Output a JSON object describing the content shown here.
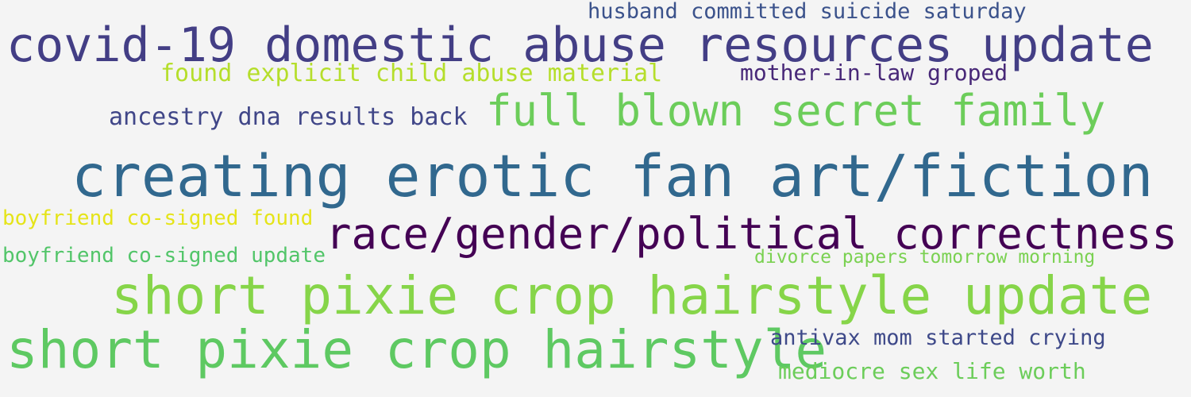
{
  "wordcloud": {
    "phrases": [
      {
        "text": "husband committed suicide saturday",
        "color": "#3b528b"
      },
      {
        "text": "covid-19 domestic abuse resources update",
        "color": "#433e85"
      },
      {
        "text": "found explicit child abuse material",
        "color": "#b5de2b"
      },
      {
        "text": "mother-in-law groped",
        "color": "#482878"
      },
      {
        "text": "ancestry dna results back",
        "color": "#404688"
      },
      {
        "text": "full blown secret family",
        "color": "#6ccd5a"
      },
      {
        "text": "creating erotic fan art/fiction",
        "color": "#31688e"
      },
      {
        "text": "boyfriend co-signed found",
        "color": "#e5e419"
      },
      {
        "text": "race/gender/political correctness",
        "color": "#440154"
      },
      {
        "text": "boyfriend co-signed update",
        "color": "#52c569"
      },
      {
        "text": "divorce papers tomorrow morning",
        "color": "#7ad151"
      },
      {
        "text": "short pixie crop hairstyle update",
        "color": "#86d549"
      },
      {
        "text": "short pixie crop hairstyle",
        "color": "#5ec962"
      },
      {
        "text": "antivax mom started crying",
        "color": "#3e4989"
      },
      {
        "text": "mediocre sex life worth",
        "color": "#6ccd5a"
      }
    ]
  }
}
